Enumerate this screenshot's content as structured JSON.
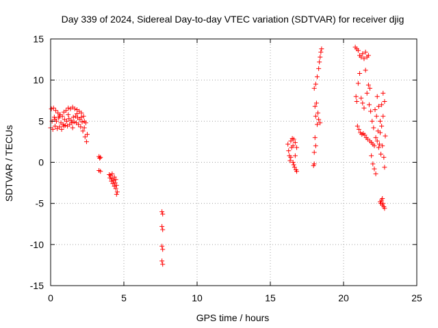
{
  "chart_data": {
    "type": "scatter",
    "title": "Day 339 of 2024, Sidereal Day-to-day VTEC variation (SDTVAR) for receiver djig",
    "xlabel": "GPS time / hours",
    "ylabel": "SDTVAR / TECUs",
    "xlim": [
      0,
      25
    ],
    "ylim": [
      -15,
      15
    ],
    "xticks": [
      0,
      5,
      10,
      15,
      20,
      25
    ],
    "yticks": [
      -15,
      -10,
      -5,
      0,
      5,
      10,
      15
    ],
    "xtick_labels": [
      "0",
      "5",
      "10",
      "15",
      "20",
      "25"
    ],
    "ytick_labels": [
      "-15",
      "-10",
      "-5",
      "0",
      "5",
      "10",
      "15"
    ],
    "grid": true,
    "marker": "+",
    "series_color": "#ff0000",
    "series": [
      {
        "name": "SDTVAR",
        "points": [
          [
            0.0,
            4.2
          ],
          [
            0.05,
            6.5
          ],
          [
            0.1,
            5.0
          ],
          [
            0.15,
            4.0
          ],
          [
            0.2,
            6.6
          ],
          [
            0.25,
            5.5
          ],
          [
            0.3,
            4.4
          ],
          [
            0.35,
            6.3
          ],
          [
            0.4,
            5.0
          ],
          [
            0.45,
            4.1
          ],
          [
            0.5,
            6.0
          ],
          [
            0.55,
            5.4
          ],
          [
            0.6,
            4.3
          ],
          [
            0.65,
            5.8
          ],
          [
            0.7,
            4.8
          ],
          [
            0.75,
            4.0
          ],
          [
            0.8,
            5.6
          ],
          [
            0.85,
            4.6
          ],
          [
            0.9,
            6.1
          ],
          [
            0.95,
            5.2
          ],
          [
            1.0,
            4.5
          ],
          [
            1.05,
            6.3
          ],
          [
            1.1,
            5.0
          ],
          [
            1.15,
            4.4
          ],
          [
            1.2,
            6.6
          ],
          [
            1.25,
            5.3
          ],
          [
            1.3,
            4.6
          ],
          [
            1.35,
            6.5
          ],
          [
            1.4,
            5.1
          ],
          [
            1.45,
            4.8
          ],
          [
            1.5,
            6.7
          ],
          [
            1.55,
            5.5
          ],
          [
            1.6,
            4.9
          ],
          [
            1.65,
            6.5
          ],
          [
            1.7,
            5.6
          ],
          [
            1.75,
            4.8
          ],
          [
            1.8,
            6.4
          ],
          [
            1.85,
            5.4
          ],
          [
            1.9,
            4.6
          ],
          [
            1.95,
            6.2
          ],
          [
            2.0,
            5.2
          ],
          [
            2.05,
            4.3
          ],
          [
            2.1,
            6.0
          ],
          [
            2.15,
            4.9
          ],
          [
            2.2,
            3.8
          ],
          [
            2.25,
            5.6
          ],
          [
            2.3,
            4.2
          ],
          [
            2.35,
            3.1
          ],
          [
            2.4,
            4.8
          ],
          [
            2.45,
            2.5
          ],
          [
            2.5,
            3.4
          ],
          [
            0.3,
            5.2
          ],
          [
            0.6,
            5.6
          ],
          [
            0.9,
            4.4
          ],
          [
            1.2,
            5.8
          ],
          [
            1.5,
            4.2
          ],
          [
            1.8,
            5.9
          ],
          [
            2.1,
            5.5
          ],
          [
            2.3,
            5.0
          ],
          [
            3.3,
            0.7
          ],
          [
            3.35,
            0.5
          ],
          [
            3.4,
            0.6
          ],
          [
            3.3,
            -1.0
          ],
          [
            3.4,
            -1.1
          ],
          [
            4.0,
            -1.5
          ],
          [
            4.05,
            -1.9
          ],
          [
            4.1,
            -1.6
          ],
          [
            4.15,
            -2.3
          ],
          [
            4.2,
            -2.0
          ],
          [
            4.25,
            -2.6
          ],
          [
            4.3,
            -2.2
          ],
          [
            4.35,
            -2.9
          ],
          [
            4.4,
            -2.5
          ],
          [
            4.45,
            -3.2
          ],
          [
            4.5,
            -2.8
          ],
          [
            4.55,
            -3.6
          ],
          [
            4.5,
            -3.9
          ],
          [
            4.2,
            -1.4
          ],
          [
            4.35,
            -1.8
          ],
          [
            4.45,
            -2.1
          ],
          [
            7.6,
            -6.0
          ],
          [
            7.65,
            -6.3
          ],
          [
            7.6,
            -7.8
          ],
          [
            7.65,
            -8.2
          ],
          [
            7.6,
            -10.2
          ],
          [
            7.65,
            -10.6
          ],
          [
            7.6,
            -12.0
          ],
          [
            7.65,
            -12.4
          ],
          [
            16.2,
            2.2
          ],
          [
            16.25,
            1.4
          ],
          [
            16.3,
            0.8
          ],
          [
            16.35,
            0.2
          ],
          [
            16.4,
            2.6
          ],
          [
            16.45,
            1.8
          ],
          [
            16.5,
            2.9
          ],
          [
            16.55,
            0.0
          ],
          [
            16.6,
            -0.3
          ],
          [
            16.6,
            2.8
          ],
          [
            16.65,
            -0.6
          ],
          [
            16.7,
            2.4
          ],
          [
            16.75,
            -0.9
          ],
          [
            16.8,
            1.8
          ],
          [
            16.8,
            -1.1
          ],
          [
            16.7,
            0.8
          ],
          [
            16.55,
            2.0
          ],
          [
            16.4,
            0.6
          ],
          [
            17.95,
            -0.4
          ],
          [
            18.0,
            1.2
          ],
          [
            18.0,
            9.0
          ],
          [
            18.05,
            3.0
          ],
          [
            18.05,
            6.8
          ],
          [
            18.1,
            9.5
          ],
          [
            18.1,
            5.6
          ],
          [
            18.15,
            7.2
          ],
          [
            18.2,
            4.6
          ],
          [
            18.2,
            10.4
          ],
          [
            18.25,
            6.0
          ],
          [
            18.3,
            11.4
          ],
          [
            18.3,
            5.2
          ],
          [
            18.35,
            12.2
          ],
          [
            18.4,
            4.8
          ],
          [
            18.4,
            12.8
          ],
          [
            18.45,
            13.4
          ],
          [
            18.5,
            13.8
          ],
          [
            18.0,
            -0.2
          ],
          [
            18.1,
            2.0
          ],
          [
            20.8,
            14.0
          ],
          [
            20.85,
            8.0
          ],
          [
            20.9,
            13.8
          ],
          [
            20.9,
            7.4
          ],
          [
            20.95,
            4.4
          ],
          [
            21.0,
            13.6
          ],
          [
            21.0,
            9.6
          ],
          [
            21.05,
            4.0
          ],
          [
            21.1,
            13.0
          ],
          [
            21.1,
            10.8
          ],
          [
            21.15,
            3.6
          ],
          [
            21.2,
            12.8
          ],
          [
            21.2,
            7.8
          ],
          [
            21.25,
            3.4
          ],
          [
            21.3,
            13.2
          ],
          [
            21.3,
            7.2
          ],
          [
            21.35,
            3.5
          ],
          [
            21.4,
            12.6
          ],
          [
            21.4,
            6.6
          ],
          [
            21.45,
            3.3
          ],
          [
            21.5,
            13.4
          ],
          [
            21.5,
            11.2
          ],
          [
            21.55,
            3.0
          ],
          [
            21.6,
            12.8
          ],
          [
            21.6,
            8.4
          ],
          [
            21.65,
            2.8
          ],
          [
            21.7,
            13.0
          ],
          [
            21.7,
            9.4
          ],
          [
            21.75,
            7.0
          ],
          [
            21.8,
            2.6
          ],
          [
            21.8,
            9.0
          ],
          [
            21.85,
            6.2
          ],
          [
            21.9,
            0.8
          ],
          [
            21.9,
            2.4
          ],
          [
            21.95,
            5.0
          ],
          [
            22.0,
            -0.2
          ],
          [
            22.0,
            2.2
          ],
          [
            22.05,
            4.2
          ],
          [
            22.1,
            -0.8
          ],
          [
            22.1,
            2.0
          ],
          [
            22.15,
            6.4
          ],
          [
            22.2,
            -1.4
          ],
          [
            22.2,
            3.0
          ],
          [
            22.25,
            5.6
          ],
          [
            22.3,
            8.0
          ],
          [
            22.3,
            2.6
          ],
          [
            22.35,
            3.8
          ],
          [
            22.4,
            6.8
          ],
          [
            22.4,
            1.8
          ],
          [
            22.45,
            2.2
          ],
          [
            22.5,
            5.0
          ],
          [
            22.5,
            3.6
          ],
          [
            22.55,
            1.0
          ],
          [
            22.6,
            7.0
          ],
          [
            22.6,
            4.4
          ],
          [
            22.65,
            2.0
          ],
          [
            22.7,
            8.4
          ],
          [
            22.7,
            5.6
          ],
          [
            22.75,
            0.6
          ],
          [
            22.8,
            7.4
          ],
          [
            22.8,
            -0.6
          ],
          [
            22.85,
            3.2
          ],
          [
            22.5,
            -4.8
          ],
          [
            22.55,
            -5.0
          ],
          [
            22.6,
            -4.6
          ],
          [
            22.65,
            -5.2
          ],
          [
            22.7,
            -5.0
          ],
          [
            22.75,
            -5.4
          ],
          [
            22.8,
            -5.6
          ],
          [
            22.65,
            -4.4
          ]
        ]
      }
    ]
  }
}
